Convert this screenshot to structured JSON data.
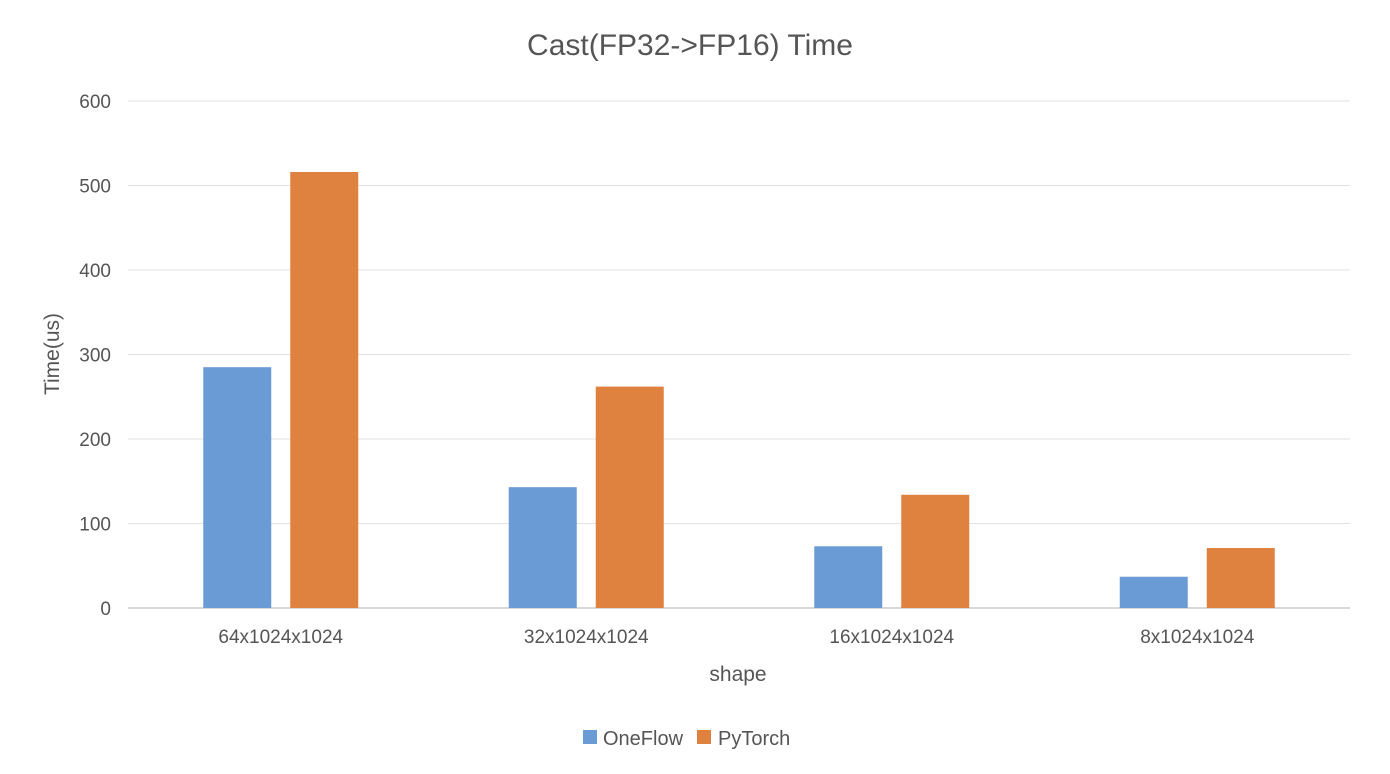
{
  "chart_data": {
    "type": "bar",
    "title": "Cast(FP32->FP16) Time",
    "xlabel": "shape",
    "ylabel": "Time(us)",
    "categories": [
      "64x1024x1024",
      "32x1024x1024",
      "16x1024x1024",
      "8x1024x1024"
    ],
    "series": [
      {
        "name": "OneFlow",
        "color": "#6a9bd4",
        "values": [
          285,
          143,
          73,
          37
        ]
      },
      {
        "name": "PyTorch",
        "color": "#e0823f",
        "values": [
          516,
          262,
          134,
          71
        ]
      }
    ],
    "ylim": [
      0,
      600
    ],
    "yticks": [
      0,
      100,
      200,
      300,
      400,
      500,
      600
    ],
    "grid": true,
    "legend_position": "bottom-center"
  }
}
